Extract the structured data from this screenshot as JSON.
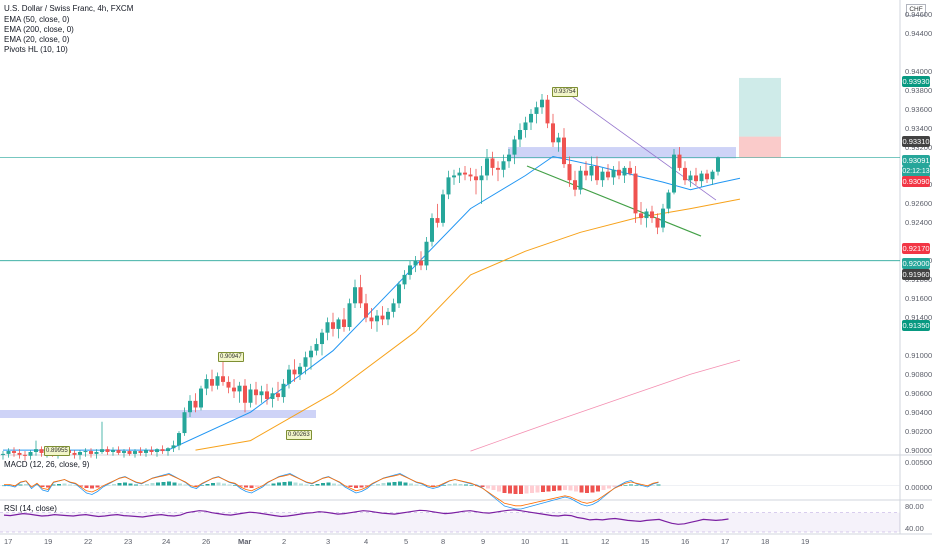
{
  "header": {
    "title": "U.S. Dollar / Swiss Franc, 4h, FXCM",
    "currency": "CHF"
  },
  "indicators": {
    "ema50": "EMA (50, close, 0)",
    "ema200": "EMA (200, close, 0)",
    "ema20": "EMA (20, close, 0)",
    "pivots": "Pivots HL (10, 10)",
    "macd": "MACD (12, 26, close, 9)",
    "rsi": "RSI (14, close)"
  },
  "price_axis": {
    "labels": [
      "0.94600",
      "0.94400",
      "0.94000",
      "0.93800",
      "0.93600",
      "0.93400",
      "0.93200",
      "0.92800",
      "0.92600",
      "0.92400",
      "0.92000",
      "0.91800",
      "0.91600",
      "0.91400",
      "0.91000",
      "0.90800",
      "0.90600",
      "0.90400",
      "0.90200",
      "0.90000"
    ]
  },
  "price_badges": {
    "target": "0.93930",
    "stop": "0.93310",
    "current": "0.93091",
    "countdown": "02:12:13",
    "entry": "0.93090",
    "red_level": "0.92170",
    "level_a": "0.92000",
    "level_b": "0.91960",
    "green_level": "0.91350"
  },
  "pivot_labels": {
    "high_top": "0.93754",
    "high_left": "0.90947",
    "low_mid": "0.90263",
    "low_left": "0.89955"
  },
  "macd_axis": {
    "top": "0.00500",
    "zero": "0.00000"
  },
  "rsi_axis": {
    "top": "80.00",
    "bottom": "40.00"
  },
  "time_axis": {
    "labels": [
      "17",
      "19",
      "22",
      "23",
      "24",
      "26",
      "Mar",
      "2",
      "3",
      "4",
      "5",
      "8",
      "9",
      "10",
      "11",
      "12",
      "15",
      "16",
      "17",
      "18",
      "19"
    ]
  },
  "colors": {
    "up": "#26a69a",
    "down": "#ef5350",
    "ema20": "#2196f3",
    "ema50": "#f7a21b",
    "ema200": "#f48fb1",
    "zone": "#c5cbf6",
    "trend_green": "#43a047",
    "trend_purple": "#9575cd",
    "rsi": "#7b1fa2"
  },
  "chart_data": {
    "type": "candlestick",
    "ylim": [
      0.8998,
      0.947
    ],
    "x_date_labels": [
      "17",
      "19",
      "22",
      "23",
      "24",
      "26",
      "Mar",
      "2",
      "3",
      "4",
      "5",
      "8",
      "9",
      "10",
      "11",
      "12",
      "15",
      "16",
      "17",
      "18",
      "19"
    ],
    "ohlc": [
      [
        0.8995,
        0.8999,
        0.899,
        0.8996
      ],
      [
        0.8996,
        0.9002,
        0.8992,
        0.8999
      ],
      [
        0.8999,
        0.9003,
        0.8993,
        0.8997
      ],
      [
        0.8997,
        0.9001,
        0.8991,
        0.8995
      ],
      [
        0.8995,
        0.8999,
        0.8989,
        0.8994
      ],
      [
        0.8994,
        0.9,
        0.899,
        0.8998
      ],
      [
        0.8998,
        0.901,
        0.8994,
        0.9001
      ],
      [
        0.9001,
        0.9004,
        0.8993,
        0.8997
      ],
      [
        0.8997,
        0.9002,
        0.8992,
        0.8999
      ],
      [
        0.8999,
        0.9003,
        0.8993,
        0.8996
      ],
      [
        0.8996,
        0.9001,
        0.8991,
        0.8998
      ],
      [
        0.8998,
        0.9003,
        0.8994,
        0.9
      ],
      [
        0.9,
        0.9003,
        0.8994,
        0.8997
      ],
      [
        0.8997,
        0.9,
        0.8991,
        0.8995
      ],
      [
        0.8995,
        0.9,
        0.899,
        0.8998
      ],
      [
        0.8998,
        0.9002,
        0.8993,
        0.8999
      ],
      [
        0.8999,
        0.9002,
        0.8992,
        0.8996
      ],
      [
        0.8996,
        0.9001,
        0.8991,
        0.8998
      ],
      [
        0.8998,
        0.903,
        0.8996,
        0.9001
      ],
      [
        0.9001,
        0.9004,
        0.8995,
        0.8998
      ],
      [
        0.8998,
        0.9003,
        0.8994,
        0.9
      ],
      [
        0.9,
        0.9004,
        0.8995,
        0.8997
      ],
      [
        0.8997,
        0.9001,
        0.8992,
        0.8999
      ],
      [
        0.8999,
        0.9003,
        0.8994,
        0.8996
      ],
      [
        0.8996,
        0.9001,
        0.8992,
        0.8999
      ],
      [
        0.8999,
        0.9003,
        0.8994,
        0.8997
      ],
      [
        0.8997,
        0.9002,
        0.8993,
        0.9
      ],
      [
        0.9,
        0.9004,
        0.8995,
        0.8998
      ],
      [
        0.8998,
        0.9002,
        0.8993,
        0.9001
      ],
      [
        0.9001,
        0.9005,
        0.8996,
        0.8999
      ],
      [
        0.8999,
        0.9003,
        0.8994,
        0.9002
      ],
      [
        0.9002,
        0.901,
        0.8998,
        0.9005
      ],
      [
        0.9005,
        0.902,
        0.9,
        0.9018
      ],
      [
        0.9018,
        0.9045,
        0.9015,
        0.904
      ],
      [
        0.904,
        0.9058,
        0.9035,
        0.9052
      ],
      [
        0.9052,
        0.906,
        0.904,
        0.9045
      ],
      [
        0.9045,
        0.9068,
        0.9042,
        0.9065
      ],
      [
        0.9065,
        0.908,
        0.9058,
        0.9075
      ],
      [
        0.9075,
        0.9085,
        0.9062,
        0.9068
      ],
      [
        0.9068,
        0.9082,
        0.9064,
        0.9078
      ],
      [
        0.9078,
        0.9095,
        0.9068,
        0.9072
      ],
      [
        0.9072,
        0.9078,
        0.906,
        0.9066
      ],
      [
        0.9066,
        0.9075,
        0.9055,
        0.9062
      ],
      [
        0.9062,
        0.9072,
        0.905,
        0.9068
      ],
      [
        0.9068,
        0.9075,
        0.904,
        0.905
      ],
      [
        0.905,
        0.907,
        0.9045,
        0.9064
      ],
      [
        0.9064,
        0.9072,
        0.9048,
        0.9058
      ],
      [
        0.9058,
        0.9068,
        0.905,
        0.9062
      ],
      [
        0.9062,
        0.907,
        0.9048,
        0.9054
      ],
      [
        0.9054,
        0.9066,
        0.9045,
        0.906
      ],
      [
        0.906,
        0.9072,
        0.9052,
        0.9056
      ],
      [
        0.9056,
        0.9075,
        0.905,
        0.907
      ],
      [
        0.907,
        0.909,
        0.9065,
        0.9085
      ],
      [
        0.9085,
        0.9096,
        0.9072,
        0.908
      ],
      [
        0.908,
        0.9092,
        0.9074,
        0.9088
      ],
      [
        0.9088,
        0.9104,
        0.908,
        0.9098
      ],
      [
        0.9098,
        0.911,
        0.9085,
        0.9105
      ],
      [
        0.9105,
        0.9118,
        0.91,
        0.9112
      ],
      [
        0.9112,
        0.9128,
        0.91,
        0.9124
      ],
      [
        0.9124,
        0.914,
        0.9116,
        0.9135
      ],
      [
        0.9135,
        0.9145,
        0.912,
        0.9128
      ],
      [
        0.9128,
        0.914,
        0.9118,
        0.9138
      ],
      [
        0.9138,
        0.915,
        0.9125,
        0.913
      ],
      [
        0.913,
        0.916,
        0.9126,
        0.9155
      ],
      [
        0.9155,
        0.918,
        0.915,
        0.9172
      ],
      [
        0.9172,
        0.9185,
        0.915,
        0.9155
      ],
      [
        0.9155,
        0.9165,
        0.9135,
        0.914
      ],
      [
        0.914,
        0.915,
        0.9128,
        0.9136
      ],
      [
        0.9136,
        0.9148,
        0.9125,
        0.9142
      ],
      [
        0.9142,
        0.9152,
        0.9132,
        0.9138
      ],
      [
        0.9138,
        0.915,
        0.9132,
        0.9146
      ],
      [
        0.9146,
        0.916,
        0.914,
        0.9155
      ],
      [
        0.9155,
        0.9178,
        0.915,
        0.9175
      ],
      [
        0.9175,
        0.919,
        0.917,
        0.9185
      ],
      [
        0.9185,
        0.92,
        0.918,
        0.9195
      ],
      [
        0.9195,
        0.9205,
        0.9188,
        0.92
      ],
      [
        0.92,
        0.921,
        0.919,
        0.9195
      ],
      [
        0.9195,
        0.9225,
        0.919,
        0.922
      ],
      [
        0.922,
        0.925,
        0.9215,
        0.9245
      ],
      [
        0.9245,
        0.926,
        0.9235,
        0.924
      ],
      [
        0.924,
        0.9275,
        0.9236,
        0.927
      ],
      [
        0.927,
        0.9295,
        0.9265,
        0.9288
      ],
      [
        0.9288,
        0.9296,
        0.928,
        0.929
      ],
      [
        0.929,
        0.9298,
        0.9282,
        0.9293
      ],
      [
        0.9293,
        0.93,
        0.9285,
        0.9291
      ],
      [
        0.9291,
        0.9298,
        0.9284,
        0.9289
      ],
      [
        0.9289,
        0.9297,
        0.927,
        0.9285
      ],
      [
        0.9285,
        0.93,
        0.926,
        0.929
      ],
      [
        0.929,
        0.9318,
        0.9285,
        0.9308
      ],
      [
        0.9308,
        0.9315,
        0.929,
        0.9298
      ],
      [
        0.9298,
        0.9305,
        0.9284,
        0.9296
      ],
      [
        0.9296,
        0.9312,
        0.9288,
        0.9305
      ],
      [
        0.9305,
        0.9318,
        0.9298,
        0.9312
      ],
      [
        0.9312,
        0.9332,
        0.9302,
        0.9328
      ],
      [
        0.9328,
        0.9345,
        0.932,
        0.9338
      ],
      [
        0.9338,
        0.9352,
        0.933,
        0.9346
      ],
      [
        0.9346,
        0.936,
        0.9338,
        0.9355
      ],
      [
        0.9355,
        0.9368,
        0.9345,
        0.9362
      ],
      [
        0.9362,
        0.9376,
        0.9355,
        0.937
      ],
      [
        0.937,
        0.9375,
        0.934,
        0.9345
      ],
      [
        0.9345,
        0.9355,
        0.932,
        0.9325
      ],
      [
        0.9325,
        0.9335,
        0.9315,
        0.933
      ],
      [
        0.933,
        0.934,
        0.9298,
        0.9302
      ],
      [
        0.9302,
        0.931,
        0.9278,
        0.9285
      ],
      [
        0.9285,
        0.9295,
        0.9268,
        0.9275
      ],
      [
        0.9275,
        0.93,
        0.927,
        0.9295
      ],
      [
        0.9295,
        0.9305,
        0.9285,
        0.929
      ],
      [
        0.929,
        0.931,
        0.9284,
        0.93
      ],
      [
        0.93,
        0.931,
        0.928,
        0.9285
      ],
      [
        0.9285,
        0.9298,
        0.9278,
        0.9294
      ],
      [
        0.9294,
        0.9302,
        0.9285,
        0.9288
      ],
      [
        0.9288,
        0.93,
        0.928,
        0.9296
      ],
      [
        0.9296,
        0.9305,
        0.9286,
        0.929
      ],
      [
        0.929,
        0.93,
        0.9282,
        0.9298
      ],
      [
        0.9298,
        0.9305,
        0.929,
        0.9292
      ],
      [
        0.9292,
        0.93,
        0.924,
        0.925
      ],
      [
        0.925,
        0.9262,
        0.9238,
        0.9245
      ],
      [
        0.9245,
        0.9255,
        0.9235,
        0.9252
      ],
      [
        0.9252,
        0.9258,
        0.924,
        0.9245
      ],
      [
        0.9245,
        0.925,
        0.9228,
        0.9235
      ],
      [
        0.9235,
        0.926,
        0.923,
        0.9255
      ],
      [
        0.9255,
        0.9275,
        0.925,
        0.9272
      ],
      [
        0.9272,
        0.9318,
        0.927,
        0.9312
      ],
      [
        0.9312,
        0.932,
        0.9295,
        0.9298
      ],
      [
        0.9298,
        0.9305,
        0.928,
        0.9285
      ],
      [
        0.9285,
        0.9295,
        0.9278,
        0.929
      ],
      [
        0.929,
        0.9298,
        0.928,
        0.9284
      ],
      [
        0.9284,
        0.9295,
        0.9278,
        0.9292
      ],
      [
        0.9292,
        0.9296,
        0.9282,
        0.9286
      ],
      [
        0.9286,
        0.9296,
        0.928,
        0.9294
      ],
      [
        0.9294,
        0.931,
        0.929,
        0.9309
      ]
    ],
    "ema20": [
      [
        0,
        0.9
      ],
      [
        30,
        0.9
      ],
      [
        45,
        0.904
      ],
      [
        60,
        0.9105
      ],
      [
        75,
        0.9195
      ],
      [
        85,
        0.9255
      ],
      [
        95,
        0.929
      ],
      [
        100,
        0.931
      ],
      [
        108,
        0.93
      ],
      [
        115,
        0.929
      ],
      [
        120,
        0.9283
      ],
      [
        125,
        0.9275
      ],
      [
        130,
        0.9282
      ],
      [
        134,
        0.9287
      ]
    ],
    "ema50": [
      [
        35,
        0.9
      ],
      [
        45,
        0.901
      ],
      [
        60,
        0.906
      ],
      [
        75,
        0.9125
      ],
      [
        85,
        0.9185
      ],
      [
        95,
        0.921
      ],
      [
        105,
        0.923
      ],
      [
        115,
        0.9245
      ],
      [
        125,
        0.9255
      ],
      [
        134,
        0.9265
      ]
    ],
    "ema200": [
      [
        85,
        0.8999
      ],
      [
        100,
        0.903
      ],
      [
        115,
        0.906
      ],
      [
        125,
        0.908
      ],
      [
        134,
        0.9095
      ]
    ],
    "levels": [
      0.932,
      0.92
    ],
    "macd": {
      "ylim": [
        -0.0025,
        0.0055
      ],
      "hist": [
        0,
        0,
        -0.0001,
        0.0002,
        0.0003,
        -0.0002,
        0.0001,
        -0.0003,
        -0.0004,
        0.0002,
        0.0003,
        0.0004,
        0.0002,
        0.0001,
        -0.0002,
        -0.0005,
        -0.0006,
        -0.0004,
        -0.0001,
        0.0001,
        0.0003,
        0.0005,
        0.0006,
        0.0004,
        0.0002,
        0.0001,
        0.0003,
        0.0005,
        0.0006,
        0.0007,
        0.0008,
        0.0006,
        0.0004,
        0.0002,
        -0.0001,
        -0.0002,
        0.0001,
        0.0003,
        0.0005,
        0.0006,
        0.0004,
        0.0002,
        0.0001,
        -0.0002,
        -0.0004,
        -0.0005,
        -0.0003,
        -0.0001,
        0.0002,
        0.0004,
        0.0006,
        0.0007,
        0.0008,
        0.0006,
        0.0004,
        0.0002,
        0.0001,
        0.0003,
        0.0005,
        0.0006,
        0.0004,
        0.0002,
        -0.0001,
        -0.0003,
        -0.0005,
        -0.0004,
        -0.0002,
        0.0001,
        0.0003,
        0.0005,
        0.0006,
        0.0007,
        0.0008,
        0.0006,
        0.0004,
        0.0002,
        0.0001,
        -0.0001,
        -0.0002,
        -0.0001,
        0.0001,
        0.0003,
        0.0004,
        0.0003,
        0.0002,
        0.0001,
        -0.0001,
        -0.0003,
        -0.0006,
        -0.0009,
        -0.0012,
        -0.0015,
        -0.0016,
        -0.0017,
        -0.0017,
        -0.0016,
        -0.0015,
        -0.0014,
        -0.0013,
        -0.0012,
        -0.0011,
        -0.001,
        -0.0009,
        -0.001,
        -0.0012,
        -0.0014,
        -0.0015,
        -0.0014,
        -0.0012,
        -0.0009,
        -0.0006,
        -0.0003,
        -0.0001,
        0.0001,
        0.0002,
        0.0001,
        0.0,
        -0.0001,
        0.0001,
        0.0002
      ]
    },
    "rsi": [
      65,
      64,
      66,
      68,
      67,
      65,
      63,
      64,
      66,
      65,
      64,
      63,
      65,
      66,
      64,
      62,
      63,
      65,
      66,
      64,
      63,
      62,
      61,
      63,
      65,
      66,
      64,
      63,
      65,
      70,
      72,
      74,
      73,
      70,
      68,
      66,
      65,
      67,
      69,
      71,
      70,
      68,
      66,
      64,
      62,
      63,
      65,
      67,
      69,
      70,
      72,
      71,
      69,
      67,
      68,
      70,
      72,
      74,
      73,
      71,
      69,
      68,
      67,
      69,
      71,
      73,
      75,
      74,
      72,
      70,
      68,
      69,
      71,
      73,
      74,
      72,
      70,
      69,
      71,
      73,
      75,
      76,
      74,
      72,
      70,
      68,
      66,
      64,
      63,
      65,
      64,
      60,
      58,
      55,
      56,
      55,
      57,
      58,
      56,
      54,
      53,
      52,
      54,
      55,
      56,
      52,
      48,
      46,
      47,
      50,
      53,
      56,
      55,
      54,
      55,
      57
    ],
    "rsi_ylim": [
      30,
      90
    ]
  }
}
